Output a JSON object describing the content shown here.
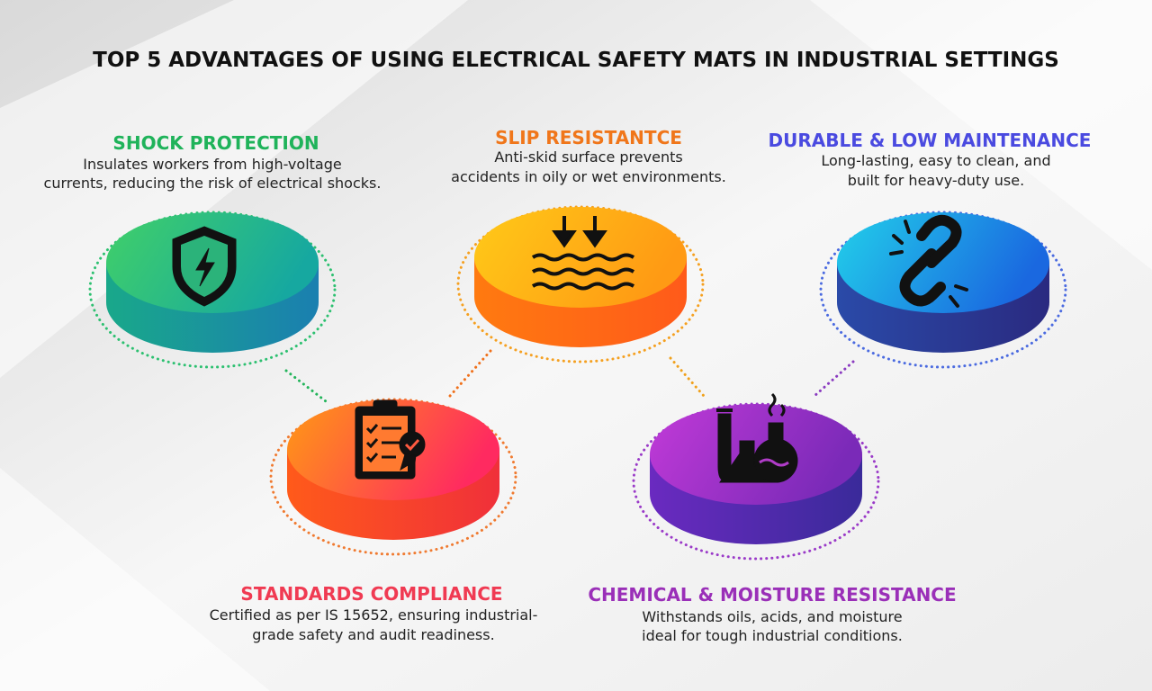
{
  "title": "TOP 5 ADVANTAGES OF USING ELECTRICAL SAFETY MATS IN INDUSTRIAL SETTINGS",
  "items": [
    {
      "heading": "SHOCK PROTECTION",
      "lines": [
        "Insulates workers from high-voltage",
        "currents, reducing the risk of electrical shocks."
      ]
    },
    {
      "heading": "SLIP RESISTANTCE",
      "lines": [
        "Anti-skid surface prevents",
        "accidents in oily or wet environments."
      ]
    },
    {
      "heading": "DURABLE & LOW MAINTENANCE",
      "lines": [
        "Long-lasting, easy to clean, and",
        "built for heavy-duty use."
      ]
    },
    {
      "heading": "STANDARDS COMPLIANCE",
      "lines": [
        "Certified as per IS 15652, ensuring industrial-",
        "grade safety and audit readiness."
      ]
    },
    {
      "heading": "CHEMICAL & MOISTURE RESISTANCE",
      "lines": [
        "Withstands oils, acids, and moisture",
        "ideal for tough industrial conditions."
      ]
    }
  ]
}
